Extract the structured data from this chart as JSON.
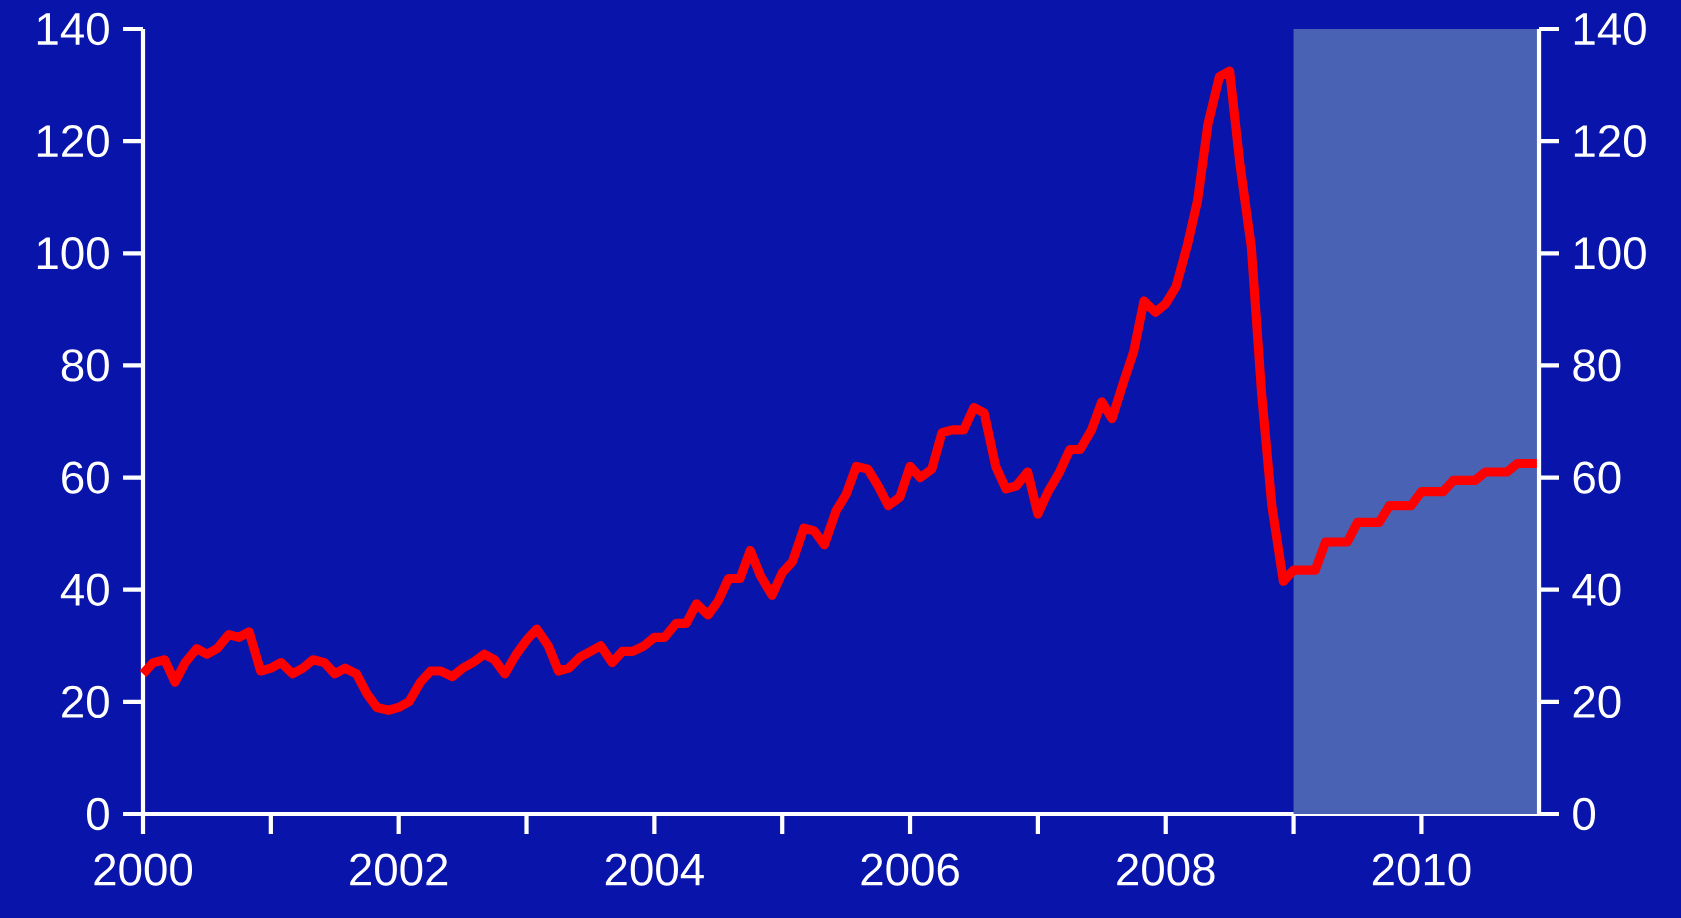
{
  "chart_data": {
    "type": "line",
    "xlim": [
      2000,
      2010.92
    ],
    "ylim": [
      0,
      140
    ],
    "y2lim": [
      0,
      140
    ],
    "xticks": [
      2000,
      2002,
      2004,
      2006,
      2008,
      2010
    ],
    "yticks": [
      0,
      20,
      40,
      60,
      80,
      100,
      120,
      140
    ],
    "y2ticks": [
      0,
      20,
      40,
      60,
      80,
      100,
      120,
      140
    ],
    "bands": [
      {
        "axis": "x",
        "from": 2009,
        "to": 2010.92,
        "color": "#4a62b4"
      }
    ],
    "series": [
      {
        "color": "#ff0000",
        "x": [
          2000.0,
          2000.08,
          2000.17,
          2000.25,
          2000.33,
          2000.42,
          2000.5,
          2000.58,
          2000.67,
          2000.75,
          2000.83,
          2000.92,
          2001.0,
          2001.08,
          2001.17,
          2001.25,
          2001.33,
          2001.42,
          2001.5,
          2001.58,
          2001.67,
          2001.75,
          2001.83,
          2001.92,
          2002.0,
          2002.08,
          2002.17,
          2002.25,
          2002.33,
          2002.42,
          2002.5,
          2002.58,
          2002.67,
          2002.75,
          2002.83,
          2002.92,
          2003.0,
          2003.08,
          2003.17,
          2003.25,
          2003.33,
          2003.42,
          2003.5,
          2003.58,
          2003.67,
          2003.75,
          2003.83,
          2003.92,
          2004.0,
          2004.08,
          2004.17,
          2004.25,
          2004.33,
          2004.42,
          2004.5,
          2004.58,
          2004.67,
          2004.75,
          2004.83,
          2004.92,
          2005.0,
          2005.08,
          2005.17,
          2005.25,
          2005.33,
          2005.42,
          2005.5,
          2005.58,
          2005.67,
          2005.75,
          2005.83,
          2005.92,
          2006.0,
          2006.08,
          2006.17,
          2006.25,
          2006.33,
          2006.42,
          2006.5,
          2006.58,
          2006.67,
          2006.75,
          2006.83,
          2006.92,
          2007.0,
          2007.08,
          2007.17,
          2007.25,
          2007.33,
          2007.42,
          2007.5,
          2007.58,
          2007.67,
          2007.75,
          2007.83,
          2007.92,
          2008.0,
          2008.08,
          2008.17,
          2008.25,
          2008.33,
          2008.42,
          2008.5,
          2008.58,
          2008.67,
          2008.75,
          2008.83,
          2008.92,
          2009.0,
          2009.08,
          2009.17,
          2009.25,
          2009.33,
          2009.42,
          2009.5,
          2009.58,
          2009.67,
          2009.75,
          2009.83,
          2009.92,
          2010.0,
          2010.08,
          2010.17,
          2010.25,
          2010.33,
          2010.42,
          2010.5,
          2010.58,
          2010.67,
          2010.75,
          2010.83,
          2010.92
        ],
        "values": [
          25,
          27,
          27.5,
          23.5,
          27,
          29.5,
          28.5,
          29.5,
          32,
          31.5,
          32.5,
          25.5,
          26,
          27,
          25,
          26,
          27.5,
          27,
          25,
          26,
          25,
          21.5,
          19,
          18.5,
          19,
          20,
          23.5,
          25.5,
          25.5,
          24.5,
          26,
          27,
          28.5,
          27.5,
          25,
          28.5,
          31,
          33,
          30,
          25.5,
          26,
          28,
          29,
          30,
          27,
          29,
          29,
          30,
          31.5,
          31.5,
          34,
          34,
          37.5,
          35.5,
          38,
          42,
          42,
          47,
          42.5,
          39,
          43,
          45,
          51,
          50.5,
          48,
          54,
          57,
          62,
          61.5,
          58.5,
          55,
          56.5,
          62,
          60,
          61.5,
          68,
          68.5,
          68.5,
          72.5,
          71.5,
          62,
          58,
          58.5,
          61,
          53.5,
          57.5,
          61,
          65,
          65,
          68.5,
          73.5,
          70.5,
          77,
          82.5,
          91.5,
          89.5,
          91,
          94,
          101.5,
          109.5,
          123,
          131.5,
          132.5,
          116,
          101,
          75,
          55,
          41.5,
          43.5,
          43.5,
          43.5,
          48.5,
          48.5,
          48.5,
          52,
          52,
          52,
          55,
          55,
          55,
          57.5,
          57.5,
          57.5,
          59.5,
          59.5,
          59.5,
          61,
          61,
          61,
          62.5,
          62.5,
          62.5
        ]
      }
    ]
  }
}
